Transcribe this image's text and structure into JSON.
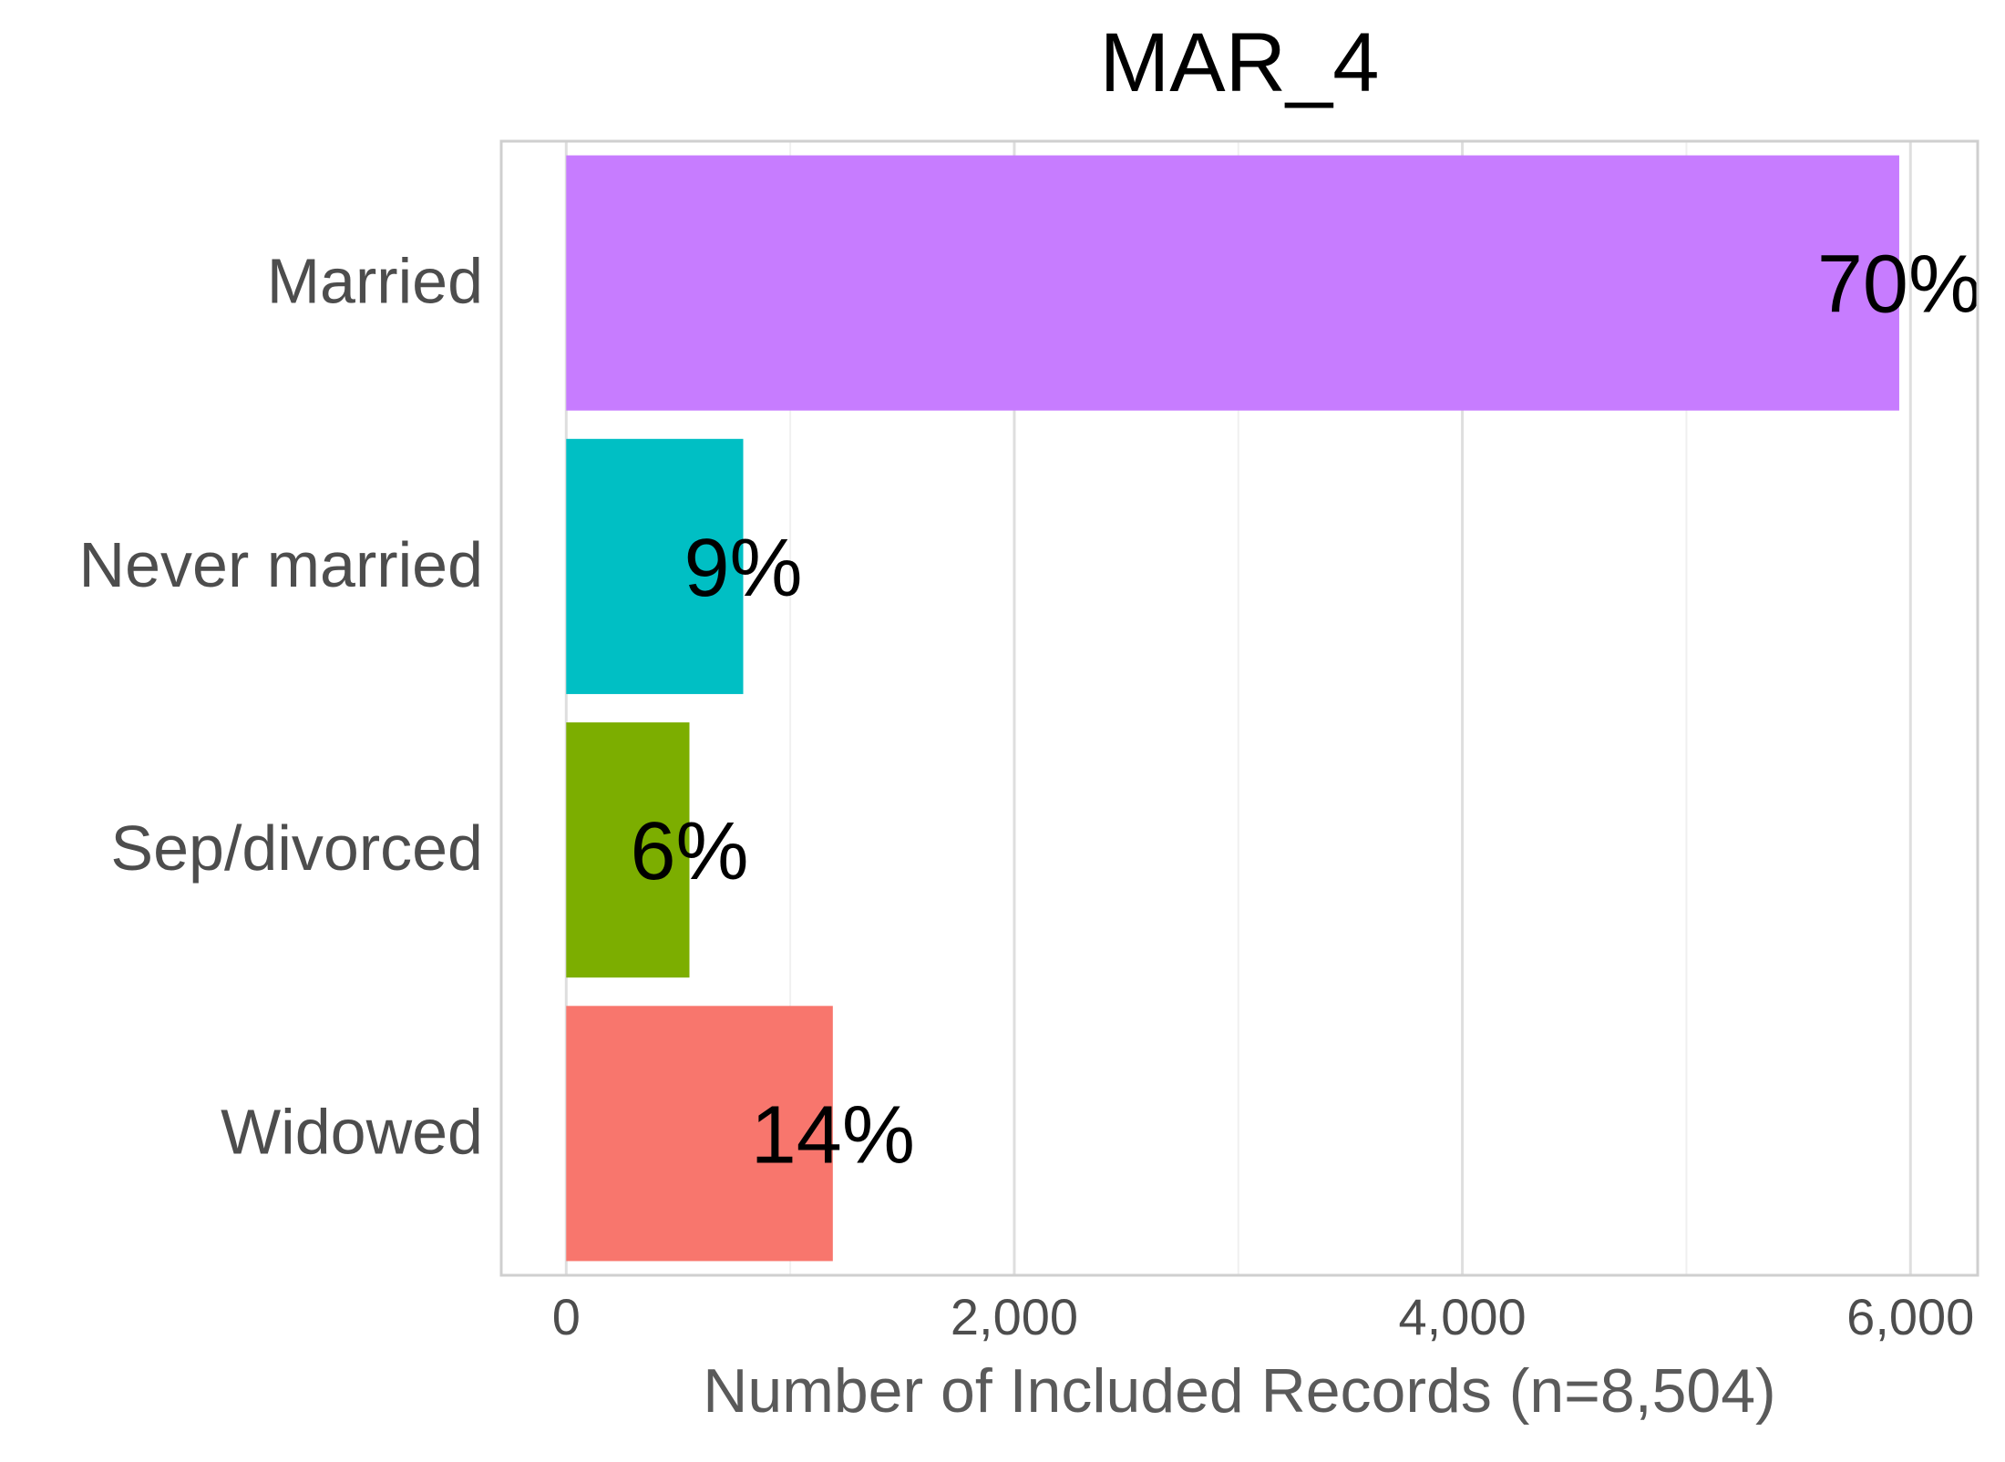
{
  "chart_data": {
    "type": "bar",
    "orientation": "horizontal",
    "title": "MAR_4",
    "xlabel": "Number of Included Records (n=8,504)",
    "ylabel": "",
    "categories": [
      "Married",
      "Never married",
      "Sep/divorced",
      "Widowed"
    ],
    "values": [
      5950,
      790,
      550,
      1190
    ],
    "data_labels": [
      "70%",
      "9%",
      "6%",
      "14%"
    ],
    "colors": [
      "#C77CFF",
      "#00BFC4",
      "#7CAE00",
      "#F8766D"
    ],
    "xlim": [
      -290,
      6300
    ],
    "x_ticks": [
      0,
      2000,
      4000,
      6000
    ],
    "x_tick_labels": [
      "0",
      "2,000",
      "4,000",
      "6,000"
    ],
    "x_minor_ticks": [
      1000,
      3000,
      5000
    ],
    "grid": true,
    "legend": "none"
  }
}
